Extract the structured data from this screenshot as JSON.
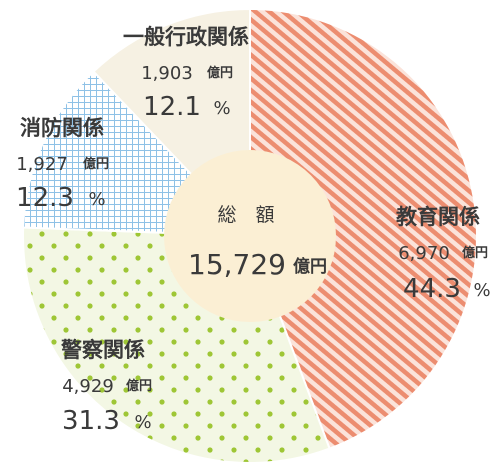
{
  "chart_data": {
    "type": "pie",
    "center": {
      "title": "総　額",
      "total": "15,729",
      "unit": "億円"
    },
    "slices": [
      {
        "label": "教育関係",
        "amount": "6,970",
        "unit": "億円",
        "value": 44.3,
        "percent": "44.3",
        "percent_sign": "%",
        "color": "#e98a6e"
      },
      {
        "label": "警察関係",
        "amount": "4,929",
        "unit": "億円",
        "value": 31.3,
        "percent": "31.3",
        "percent_sign": "%",
        "color": "#9ac52f"
      },
      {
        "label": "消防関係",
        "amount": "1,927",
        "unit": "億円",
        "value": 12.3,
        "percent": "12.3",
        "percent_sign": "%",
        "color": "#7ab6e0"
      },
      {
        "label": "一般行政関係",
        "amount": "1,903",
        "unit": "億円",
        "value": 12.1,
        "percent": "12.1",
        "percent_sign": "%",
        "color": "#f4eedc"
      }
    ]
  }
}
